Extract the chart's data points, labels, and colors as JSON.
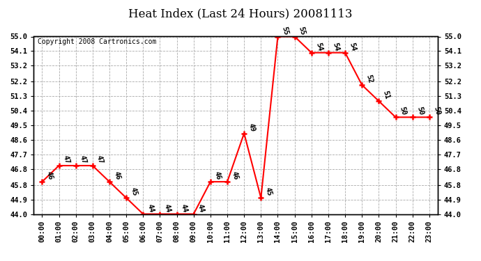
{
  "title": "Heat Index (Last 24 Hours) 20081113",
  "copyright": "Copyright 2008 Cartronics.com",
  "hours": [
    "00:00",
    "01:00",
    "02:00",
    "03:00",
    "04:00",
    "05:00",
    "06:00",
    "07:00",
    "08:00",
    "09:00",
    "10:00",
    "11:00",
    "12:00",
    "13:00",
    "14:00",
    "15:00",
    "16:00",
    "17:00",
    "18:00",
    "19:00",
    "20:00",
    "21:00",
    "22:00",
    "23:00"
  ],
  "values": [
    46,
    47,
    47,
    47,
    46,
    45,
    44,
    44,
    44,
    44,
    46,
    46,
    49,
    45,
    55,
    55,
    54,
    54,
    54,
    52,
    51,
    50,
    50,
    50
  ],
  "ylim_min": 44.0,
  "ylim_max": 55.0,
  "yticks": [
    44.0,
    44.9,
    45.8,
    46.8,
    47.7,
    48.6,
    49.5,
    50.4,
    51.3,
    52.2,
    53.2,
    54.1,
    55.0
  ],
  "line_color": "#FF0000",
  "marker_color": "#FF0000",
  "bg_color": "#FFFFFF",
  "grid_color": "#AAAAAA",
  "title_fontsize": 12,
  "label_fontsize": 7.5,
  "tick_fontsize": 7.5,
  "copyright_fontsize": 7
}
